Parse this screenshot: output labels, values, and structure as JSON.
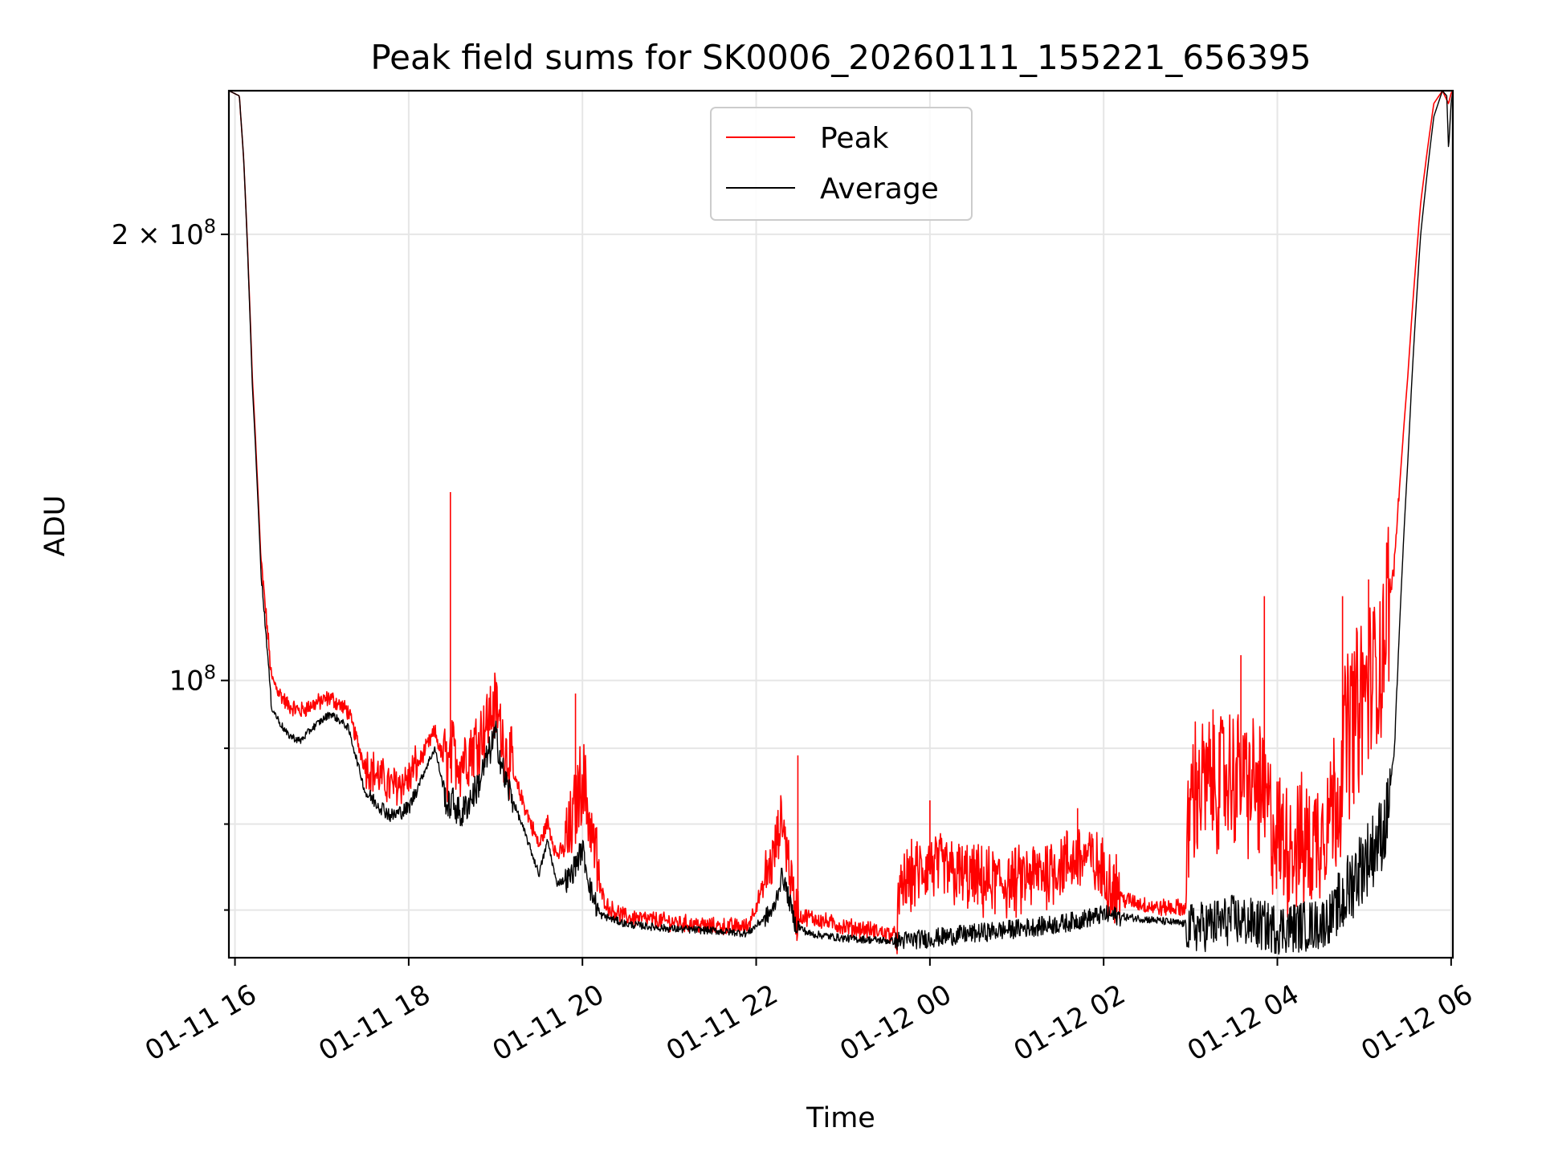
{
  "chart_data": {
    "type": "line",
    "title": "Peak field sums for SK0006_20260111_155221_656395",
    "xlabel": "Time",
    "ylabel": "ADU",
    "y_scale": "log",
    "ylim": [
      65000000,
      250000000
    ],
    "xlim_hours_from_0111_00": [
      15.93,
      30.02
    ],
    "x_ticks": [
      {
        "hour": 16,
        "label": "01-11 16"
      },
      {
        "hour": 18,
        "label": "01-11 18"
      },
      {
        "hour": 20,
        "label": "01-11 20"
      },
      {
        "hour": 22,
        "label": "01-11 22"
      },
      {
        "hour": 24,
        "label": "01-12 00"
      },
      {
        "hour": 26,
        "label": "01-12 02"
      },
      {
        "hour": 28,
        "label": "01-12 04"
      },
      {
        "hour": 30,
        "label": "01-12 06"
      }
    ],
    "y_major_ticks": [
      {
        "value": 100000000,
        "base": "10",
        "exp": "8"
      },
      {
        "value": 200000000,
        "base": "2 × 10",
        "exp": "8"
      }
    ],
    "y_minor_ticks": [
      70000000,
      80000000,
      90000000
    ],
    "grid": true,
    "legend": {
      "position": "top-center",
      "entries": [
        "Peak",
        "Average"
      ]
    },
    "series": [
      {
        "name": "Peak",
        "color": "#ff0000",
        "x_hours": [
          15.93,
          16.05,
          16.1,
          16.2,
          16.3,
          16.42,
          16.5,
          16.6,
          16.75,
          16.9,
          17.1,
          17.3,
          17.5,
          17.8,
          18.0,
          18.3,
          18.45,
          18.5,
          18.6,
          18.8,
          19.0,
          19.1,
          19.3,
          19.5,
          19.6,
          19.7,
          19.85,
          20.0,
          20.1,
          20.2,
          20.3,
          20.5,
          21.0,
          21.5,
          21.9,
          22.2,
          22.3,
          22.45,
          22.6,
          23.0,
          23.4,
          23.6,
          23.7,
          24.0,
          24.3,
          24.6,
          25.0,
          25.5,
          25.8,
          26.2,
          26.6,
          26.95,
          27.0,
          27.2,
          27.5,
          27.8,
          28.0,
          28.4,
          28.7,
          28.8,
          29.0,
          29.2,
          29.35,
          29.5,
          29.65,
          29.8,
          29.9,
          29.97,
          30.0,
          30.02
        ],
        "values": [
          250000000,
          248000000,
          225000000,
          160000000,
          120000000,
          100000000,
          98000000,
          96000000,
          95000000,
          96000000,
          97000000,
          95000000,
          87000000,
          84000000,
          85000000,
          92000000,
          86000000,
          88000000,
          87000000,
          90000000,
          95000000,
          89000000,
          83000000,
          77000000,
          80000000,
          76000000,
          77000000,
          85000000,
          78000000,
          72000000,
          70000000,
          69000000,
          68500000,
          68000000,
          68000000,
          75000000,
          80000000,
          69000000,
          69000000,
          68000000,
          67500000,
          67000000,
          72000000,
          74000000,
          73000000,
          72000000,
          72000000,
          74000000,
          75000000,
          71000000,
          70000000,
          70000000,
          82000000,
          83000000,
          84000000,
          82000000,
          76000000,
          75000000,
          82000000,
          90000000,
          95000000,
          100000000,
          120000000,
          160000000,
          210000000,
          245000000,
          250000000,
          245000000,
          249000000,
          250000000
        ],
        "spikes": [
          {
            "hour": 16.32,
            "value": 116000000
          },
          {
            "hour": 18.48,
            "value": 134000000
          },
          {
            "hour": 18.9,
            "value": 97000000
          },
          {
            "hour": 19.92,
            "value": 98000000
          },
          {
            "hour": 22.48,
            "value": 89000000
          },
          {
            "hour": 24.0,
            "value": 83000000
          },
          {
            "hour": 25.7,
            "value": 82000000
          },
          {
            "hour": 27.58,
            "value": 104000000
          },
          {
            "hour": 27.85,
            "value": 114000000
          },
          {
            "hour": 28.75,
            "value": 114000000
          },
          {
            "hour": 29.05,
            "value": 117000000
          }
        ]
      },
      {
        "name": "Average",
        "color": "#000000",
        "x_hours": [
          15.93,
          16.05,
          16.1,
          16.2,
          16.3,
          16.42,
          16.5,
          16.6,
          16.75,
          16.9,
          17.1,
          17.3,
          17.5,
          17.8,
          18.0,
          18.3,
          18.45,
          18.5,
          18.6,
          18.8,
          19.0,
          19.1,
          19.3,
          19.5,
          19.6,
          19.7,
          19.85,
          20.0,
          20.1,
          20.2,
          20.5,
          21.0,
          21.5,
          21.9,
          22.2,
          22.3,
          22.45,
          22.6,
          23.0,
          23.4,
          23.6,
          24.0,
          24.5,
          25.0,
          25.5,
          26.0,
          26.5,
          26.95,
          27.0,
          27.5,
          28.0,
          28.5,
          28.7,
          28.9,
          29.1,
          29.25,
          29.35,
          29.5,
          29.65,
          29.8,
          29.9,
          29.95,
          29.97,
          30.0,
          30.02
        ],
        "values": [
          250000000,
          248000000,
          225000000,
          158000000,
          118000000,
          96000000,
          94000000,
          92000000,
          91000000,
          93000000,
          95000000,
          93000000,
          84000000,
          81000000,
          82000000,
          90000000,
          82000000,
          83000000,
          81000000,
          85000000,
          92000000,
          86000000,
          80000000,
          74000000,
          78000000,
          73000000,
          73500000,
          77000000,
          72000000,
          69500000,
          68500000,
          68000000,
          67800000,
          67500000,
          70000000,
          74000000,
          68500000,
          67500000,
          67000000,
          66800000,
          66700000,
          67000000,
          67500000,
          68000000,
          68500000,
          69500000,
          69000000,
          68500000,
          68000000,
          69000000,
          68000000,
          68500000,
          70000000,
          74000000,
          77000000,
          80000000,
          90000000,
          140000000,
          200000000,
          240000000,
          250000000,
          248000000,
          228000000,
          245000000,
          250000000
        ]
      }
    ]
  }
}
